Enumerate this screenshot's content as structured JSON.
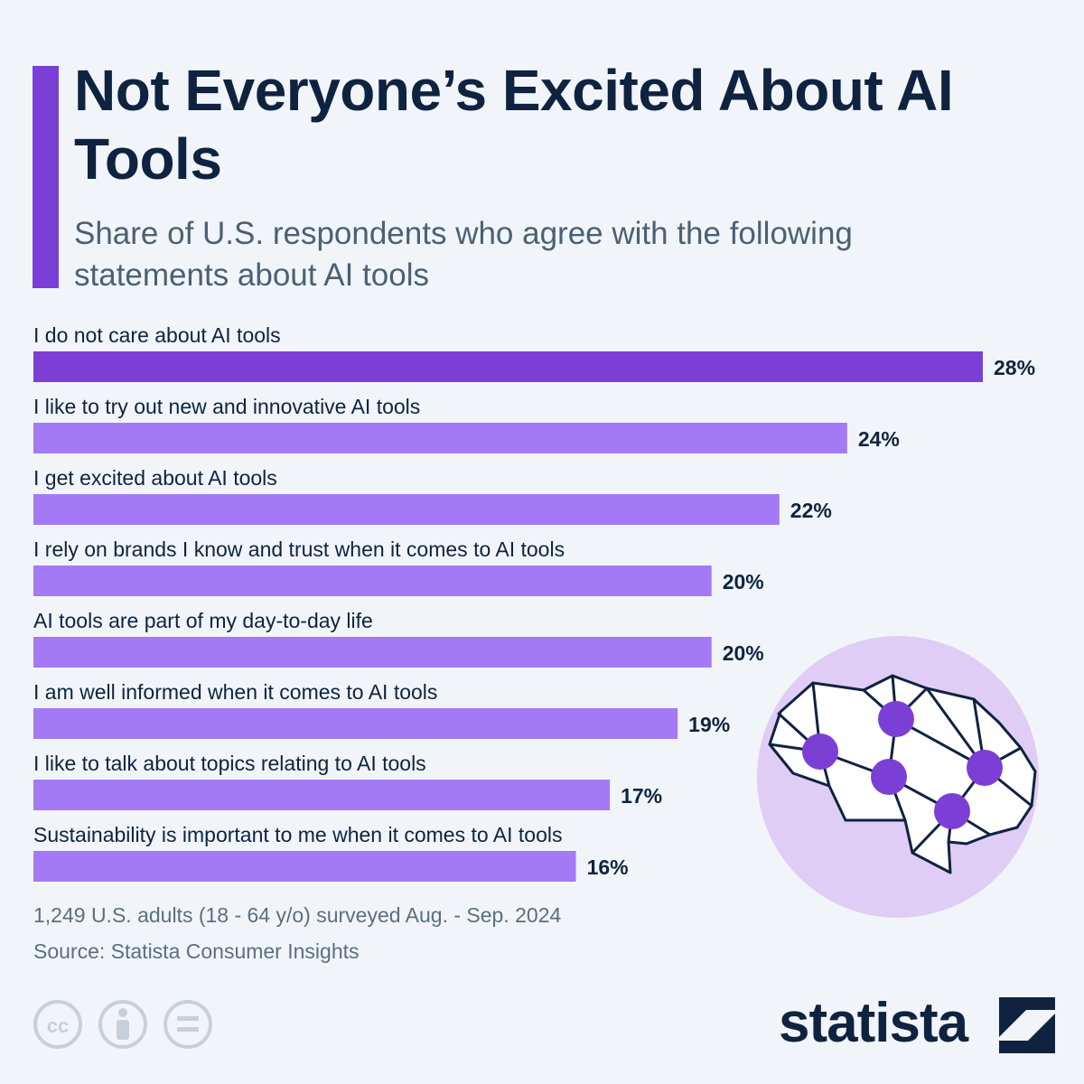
{
  "title": "Not Everyone’s Excited About AI Tools",
  "subtitle": "Share of U.S. respondents who agree with the following statements about AI tools",
  "footnote": {
    "survey": "1,249 U.S. adults (18 - 64 y/o) surveyed Aug. - Sep. 2024",
    "source": "Source: Statista Consumer Insights"
  },
  "logo": {
    "text": "statista"
  },
  "colors": {
    "highlight_bar": "#7b3fd6",
    "bar": "#a479f6",
    "text_dark": "#0f2340",
    "accent": "#7b3fd6",
    "brain_circle": "#e0cdf5"
  },
  "chart_data": {
    "type": "bar",
    "orientation": "horizontal",
    "title": "Not Everyone’s Excited About AI Tools",
    "subtitle": "Share of U.S. respondents who agree with the following statements about AI tools",
    "categories": [
      "I do not care about AI tools",
      "I like to try out new and innovative AI tools",
      "I get excited about AI tools",
      "I rely on brands I know and trust when it comes to AI tools",
      "AI tools are part of my day-to-day life",
      "I am well informed when it comes to AI tools",
      "I like to talk about topics relating to AI tools",
      "Sustainability is important to me when it comes to AI tools"
    ],
    "values": [
      28,
      24,
      22,
      20,
      20,
      19,
      17,
      16
    ],
    "value_suffix": "%",
    "highlight_index": 0,
    "xlim": [
      0,
      28
    ],
    "xlabel": "",
    "ylabel": "",
    "grid": false
  }
}
